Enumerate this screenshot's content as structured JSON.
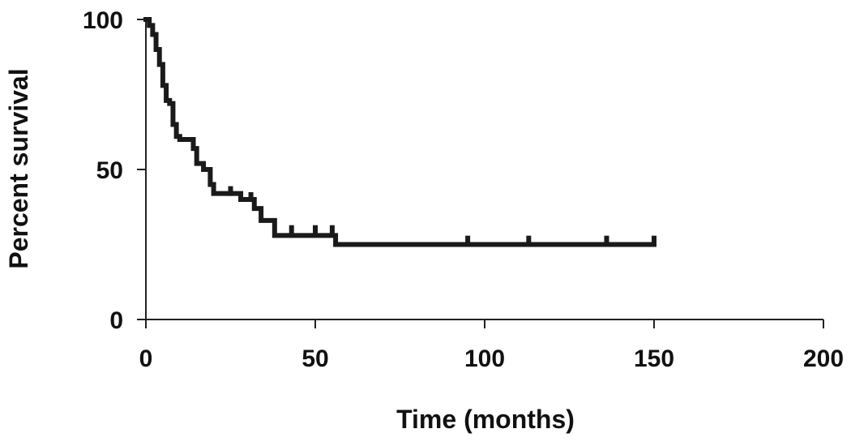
{
  "chart_data": {
    "type": "line",
    "title": "",
    "xlabel": "Time (months)",
    "ylabel": "Percent survival",
    "xlim": [
      0,
      200
    ],
    "ylim": [
      0,
      100
    ],
    "xticks": [
      0,
      50,
      100,
      150,
      200
    ],
    "yticks": [
      0,
      50,
      100
    ],
    "grid": false,
    "legend": "none",
    "line_color": "#1a1a1a",
    "series": [
      {
        "step": "post",
        "x": [
          0,
          1,
          2,
          3,
          4,
          5,
          6,
          7,
          8,
          9,
          10,
          14,
          15,
          17,
          19,
          20,
          28,
          32,
          34,
          38,
          56,
          150
        ],
        "y": [
          100,
          98,
          95,
          90,
          85,
          78,
          73,
          72,
          65,
          61,
          60,
          57,
          52,
          50,
          45,
          42,
          40,
          37,
          33,
          28,
          25,
          25
        ]
      }
    ],
    "censor_marks": [
      {
        "x": 25,
        "y": 42
      },
      {
        "x": 31,
        "y": 40
      },
      {
        "x": 43,
        "y": 29
      },
      {
        "x": 50,
        "y": 29
      },
      {
        "x": 55,
        "y": 29
      },
      {
        "x": 95,
        "y": 25.5
      },
      {
        "x": 113,
        "y": 25.5
      },
      {
        "x": 136,
        "y": 25.5
      },
      {
        "x": 150,
        "y": 25.5
      }
    ]
  }
}
